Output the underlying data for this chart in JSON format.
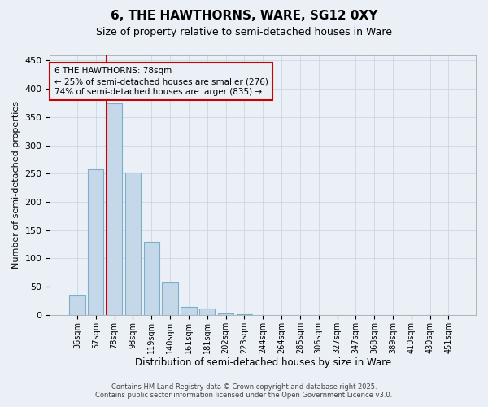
{
  "title": "6, THE HAWTHORNS, WARE, SG12 0XY",
  "subtitle": "Size of property relative to semi-detached houses in Ware",
  "xlabel": "Distribution of semi-detached houses by size in Ware",
  "ylabel": "Number of semi-detached properties",
  "categories": [
    "36sqm",
    "57sqm",
    "78sqm",
    "98sqm",
    "119sqm",
    "140sqm",
    "161sqm",
    "181sqm",
    "202sqm",
    "223sqm",
    "244sqm",
    "264sqm",
    "285sqm",
    "306sqm",
    "327sqm",
    "347sqm",
    "368sqm",
    "389sqm",
    "410sqm",
    "430sqm",
    "451sqm"
  ],
  "values": [
    35,
    258,
    375,
    252,
    130,
    57,
    15,
    11,
    3,
    1,
    0,
    0,
    0,
    0,
    0,
    0,
    0,
    0,
    0,
    0,
    0
  ],
  "bar_color": "#c5d8ea",
  "bar_edge_color": "#7daec9",
  "grid_color": "#c8d8e8",
  "bg_color": "#eaf0f6",
  "property_size_idx": 2,
  "property_line_color": "#cc0000",
  "annotation_line1": "6 THE HAWTHORNS: 78sqm",
  "annotation_line2": "← 25% of semi-detached houses are smaller (276)",
  "annotation_line3": "74% of semi-detached houses are larger (835) →",
  "annotation_box_color": "#cc0000",
  "footer_line1": "Contains HM Land Registry data © Crown copyright and database right 2025.",
  "footer_line2": "Contains public sector information licensed under the Open Government Licence v3.0.",
  "ylim": [
    0,
    460
  ],
  "yticks": [
    0,
    50,
    100,
    150,
    200,
    250,
    300,
    350,
    400,
    450
  ]
}
